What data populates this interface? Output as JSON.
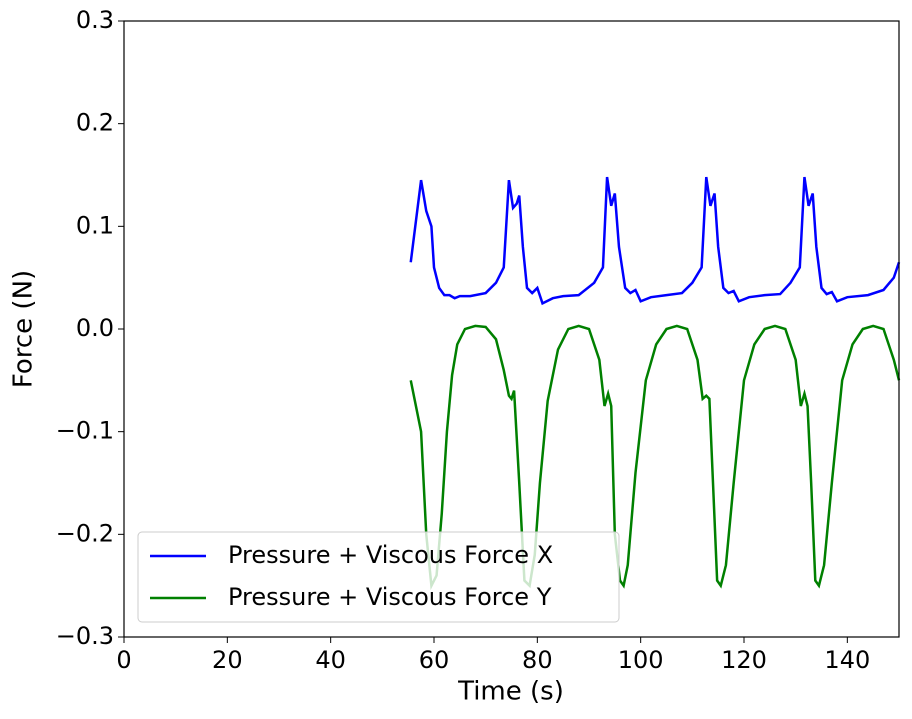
{
  "chart_data": {
    "type": "line",
    "xlabel": "Time (s)",
    "ylabel": "Force (N)",
    "xlim": [
      0,
      150
    ],
    "xticks": [
      0,
      20,
      40,
      60,
      80,
      100,
      120,
      140
    ],
    "ylim": [
      -0.3,
      0.3
    ],
    "yticks": [
      {
        "value": -0.3,
        "label": "−0.3"
      },
      {
        "value": -0.2,
        "label": "−0.2"
      },
      {
        "value": -0.1,
        "label": "−0.1"
      },
      {
        "value": 0,
        "label": "0.0"
      },
      0.1,
      0.2,
      0.3
    ],
    "legend": "lower left",
    "series": [
      {
        "name": "Pressure + Viscous Force X",
        "color": "#0000ff",
        "x": [
          55.5,
          57.5,
          58.5,
          59.5,
          60,
          61,
          62,
          63,
          64,
          65,
          67,
          70,
          72,
          73.5,
          74.5,
          75.3,
          76,
          76.5,
          77.2,
          78,
          79,
          80,
          81,
          83,
          85,
          88,
          91,
          92.7,
          93.5,
          94.3,
          95,
          95.8,
          97,
          98,
          99,
          100,
          102,
          105,
          108,
          110,
          111.8,
          112.7,
          113.5,
          114.3,
          115,
          116,
          117,
          118,
          119,
          121,
          124,
          127,
          129,
          130.8,
          131.7,
          132.5,
          133.3,
          134,
          135,
          136,
          137,
          138,
          140,
          144,
          147,
          149,
          150
        ],
        "values": [
          0.065,
          0.145,
          0.115,
          0.1,
          0.06,
          0.04,
          0.033,
          0.033,
          0.03,
          0.032,
          0.032,
          0.035,
          0.045,
          0.06,
          0.145,
          0.118,
          0.122,
          0.13,
          0.08,
          0.04,
          0.035,
          0.04,
          0.025,
          0.03,
          0.032,
          0.033,
          0.045,
          0.06,
          0.148,
          0.12,
          0.132,
          0.08,
          0.04,
          0.035,
          0.038,
          0.027,
          0.031,
          0.033,
          0.035,
          0.045,
          0.06,
          0.148,
          0.12,
          0.132,
          0.08,
          0.04,
          0.035,
          0.037,
          0.027,
          0.031,
          0.033,
          0.034,
          0.045,
          0.06,
          0.148,
          0.12,
          0.132,
          0.08,
          0.04,
          0.034,
          0.036,
          0.027,
          0.031,
          0.033,
          0.038,
          0.05,
          0.065
        ]
      },
      {
        "name": "Pressure + Viscous Force Y",
        "color": "#008000",
        "x": [
          55.5,
          56.5,
          57.5,
          58.5,
          59.5,
          60.5,
          61.5,
          62.5,
          63.5,
          64.5,
          66,
          68,
          70,
          72,
          73.5,
          74.5,
          75,
          75.5,
          76.5,
          77.5,
          78.5,
          79.5,
          80.5,
          82,
          84,
          86,
          88,
          90,
          92,
          93,
          93.7,
          94.3,
          95,
          96,
          96.7,
          97.5,
          99,
          101,
          103,
          105,
          107,
          109,
          111,
          112,
          112.7,
          113.3,
          114,
          114.8,
          115.5,
          116.5,
          118,
          120,
          122,
          124,
          126,
          128,
          130,
          131,
          131.7,
          132.3,
          133,
          133.8,
          134.5,
          135.5,
          137,
          139,
          141,
          143,
          145,
          147,
          149,
          150
        ],
        "values": [
          -0.05,
          -0.075,
          -0.1,
          -0.2,
          -0.25,
          -0.24,
          -0.18,
          -0.1,
          -0.045,
          -0.015,
          0,
          0.003,
          0.002,
          -0.01,
          -0.04,
          -0.065,
          -0.068,
          -0.06,
          -0.15,
          -0.245,
          -0.25,
          -0.22,
          -0.15,
          -0.07,
          -0.02,
          0,
          0.003,
          0,
          -0.03,
          -0.075,
          -0.063,
          -0.075,
          -0.2,
          -0.245,
          -0.25,
          -0.23,
          -0.14,
          -0.05,
          -0.015,
          0,
          0.003,
          0,
          -0.03,
          -0.068,
          -0.065,
          -0.068,
          -0.15,
          -0.245,
          -0.25,
          -0.23,
          -0.15,
          -0.05,
          -0.015,
          0,
          0.003,
          0,
          -0.03,
          -0.075,
          -0.063,
          -0.075,
          -0.15,
          -0.245,
          -0.25,
          -0.23,
          -0.15,
          -0.05,
          -0.015,
          0,
          0.003,
          0,
          -0.03,
          -0.05
        ]
      }
    ]
  }
}
